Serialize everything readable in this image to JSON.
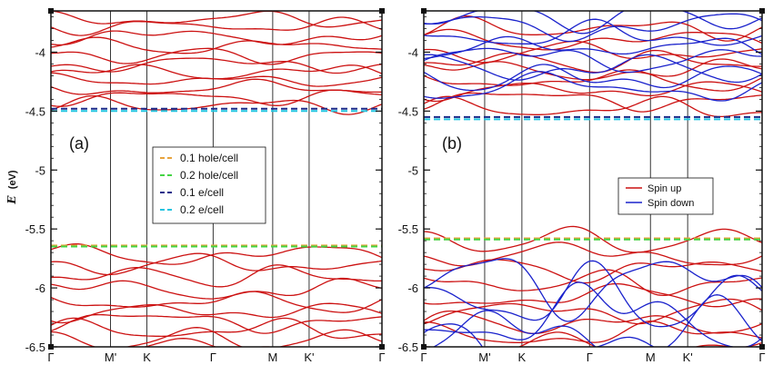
{
  "chart_data": [
    {
      "type": "line",
      "panel_label": "(a)",
      "ylabel": "E",
      "ylabel_unit": "(eV)",
      "ylim": [
        -6.5,
        -3.65
      ],
      "yticks": [
        -4,
        -4.5,
        -5,
        -5.5,
        -6,
        -6.5
      ],
      "k_labels": [
        "Γ",
        "M'",
        "K",
        "Γ",
        "M",
        "K'",
        "Γ"
      ],
      "k_positions": [
        0,
        0.18,
        0.29,
        0.49,
        0.67,
        0.78,
        1.0
      ],
      "band_color": "#cc1111",
      "fermi_levels": [
        {
          "name": "0.1 hole/cell",
          "value": -5.64,
          "color": "#e8a33d"
        },
        {
          "name": "0.2 hole/cell",
          "value": -5.64,
          "color": "#44d444"
        },
        {
          "name": "0.1 e/cell",
          "value": -4.48,
          "color": "#1a2a8a"
        },
        {
          "name": "0.2 e/cell",
          "value": -4.49,
          "color": "#22c4e0"
        }
      ],
      "conduction_band_centers": [
        -3.72,
        -3.78,
        -3.87,
        -3.95,
        -4.03,
        -4.1,
        -4.17,
        -4.24,
        -4.31,
        -4.38,
        -4.45
      ],
      "valence_band_centers": [
        -5.72,
        -5.8,
        -5.9,
        -6.02,
        -6.12,
        -6.2,
        -6.28,
        -6.36,
        -6.44,
        -6.52
      ],
      "legend": [
        "0.1 hole/cell",
        "0.2 hole/cell",
        "0.1 e/cell",
        "0.2 e/cell"
      ]
    },
    {
      "type": "line",
      "panel_label": "(b)",
      "ylim": [
        -6.5,
        -3.65
      ],
      "yticks": [
        -4,
        -4.5,
        -5,
        -5.5,
        -6,
        -6.5
      ],
      "k_labels": [
        "Γ",
        "M'",
        "K",
        "Γ",
        "M",
        "K'",
        "Γ"
      ],
      "k_positions": [
        0,
        0.18,
        0.29,
        0.49,
        0.67,
        0.78,
        1.0
      ],
      "fermi_levels": [
        {
          "value": -5.58,
          "color": "#e8a33d"
        },
        {
          "value": -5.58,
          "color": "#44d444"
        },
        {
          "value": -4.55,
          "color": "#1a2a8a"
        },
        {
          "value": -4.56,
          "color": "#22c4e0"
        }
      ],
      "series": [
        {
          "name": "Spin up",
          "color": "#cc1111",
          "conduction_band_centers": [
            -3.8,
            -3.9,
            -4.0,
            -4.08,
            -4.16,
            -4.24,
            -4.32,
            -4.4,
            -4.48
          ],
          "valence_band_centers": [
            -5.6,
            -5.72,
            -5.84,
            -5.96,
            -6.08,
            -6.2,
            -6.3,
            -6.4,
            -6.5
          ]
        },
        {
          "name": "Spin down",
          "color": "#1a22cc",
          "conduction_band_centers": [
            -3.7,
            -3.78,
            -3.86,
            -3.96,
            -4.05,
            -4.14,
            -4.22,
            -4.3
          ],
          "valence_band_centers": [
            -5.95,
            -6.1,
            -6.25,
            -6.4,
            -6.55
          ]
        }
      ],
      "legend": [
        "Spin up",
        "Spin down"
      ]
    }
  ]
}
